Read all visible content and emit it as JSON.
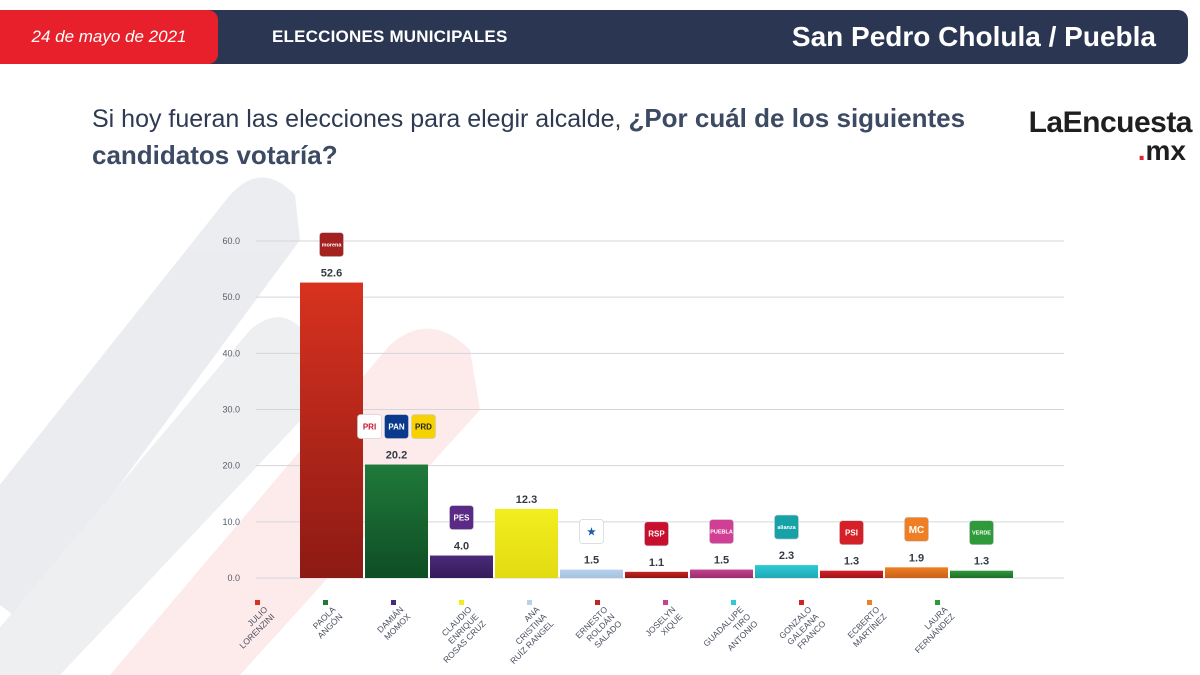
{
  "header": {
    "date": "24 de mayo de 2021",
    "section": "ELECCIONES MUNICIPALES",
    "place": "San Pedro Cholula / Puebla"
  },
  "question": {
    "part1": "Si hoy fueran las elecciones para elegir alcalde, ",
    "part2": "¿Por cuál de los siguientes candidatos votaría?"
  },
  "brand": {
    "name": "LaEncuesta",
    "dot": ".",
    "tld": "mx"
  },
  "colors": {
    "accent_red": "#e8202b",
    "navy": "#2b3752"
  },
  "chart_data": {
    "type": "bar",
    "ylim": [
      0,
      60
    ],
    "yticks": [
      0,
      10,
      20,
      30,
      40,
      50,
      60
    ],
    "ytick_labels": [
      "0.0",
      "10.0",
      "20.0",
      "30.0",
      "40.0",
      "50.0",
      "60.0"
    ],
    "grid": true,
    "categories": [
      "JULIO LORENZINI",
      "PAOLA ANGÓN",
      "DAMIÁN MOMOX",
      "CLAUDIO ENRIQUE ROSAS CRUZ",
      "ANA CRISTINA RUÍZ RANGEL",
      "ERNESTO ROLDÁN SALADO",
      "JOSELYN XIQUE",
      "GUADALUPE TIRO ANTONIO",
      "GONZALO GALEANA FRANCO",
      "ECBERTO MARTÍNEZ",
      "LAURA FERNÁNDEZ"
    ],
    "category_lines": [
      [
        "JULIO",
        "LORENZINI"
      ],
      [
        "PAOLA",
        "ANGÓN"
      ],
      [
        "DAMIÁN",
        "MOMOX"
      ],
      [
        "CLAUDIO",
        "ENRIQUE",
        "ROSAS CRUZ"
      ],
      [
        "ANA",
        "CRISTINA",
        "RUÍZ RANGEL"
      ],
      [
        "ERNESTO",
        "ROLDÁN",
        "SALADO"
      ],
      [
        "JOSELYN",
        "XIQUE"
      ],
      [
        "GUADALUPE",
        "TIRO",
        "ANTONIO"
      ],
      [
        "GONZALO",
        "GALEANA",
        "FRANCO"
      ],
      [
        "ECBERTO",
        "MARTÍNEZ"
      ],
      [
        "LAURA",
        "FERNÁNDEZ"
      ]
    ],
    "values": [
      52.6,
      20.2,
      4.0,
      12.3,
      1.5,
      1.1,
      1.5,
      2.3,
      1.3,
      1.9,
      1.3
    ],
    "value_labels": [
      "52.6",
      "20.2",
      "4.0",
      "12.3",
      "1.5",
      "1.1",
      "1.5",
      "2.3",
      "1.3",
      "1.9",
      "1.3"
    ],
    "bar_colors": [
      "#d8321f",
      "#1f7a3a",
      "#4a2a7a",
      "#f2ee1e",
      "#b8d2ec",
      "#c8231f",
      "#c4428e",
      "#2ec9d6",
      "#d62027",
      "#ef7f22",
      "#2f9a3a"
    ],
    "bar_colors_dark": [
      "#8c1a14",
      "#0f4d24",
      "#351b5c",
      "#e3db12",
      "#a4c2e0",
      "#8e1714",
      "#9b2d6d",
      "#1eaab6",
      "#9e1418",
      "#c8621a",
      "#1d6e27"
    ],
    "party_badges": [
      [
        {
          "name": "morena-logo",
          "text": "morena",
          "bg": "#a3211f",
          "fg": "#ffffff"
        }
      ],
      [
        {
          "name": "pri-logo",
          "text": "PRI",
          "bg": "#ffffff",
          "fg": "#c8102e"
        },
        {
          "name": "pan-logo",
          "text": "PAN",
          "bg": "#0a3a8c",
          "fg": "#ffffff"
        },
        {
          "name": "prd-logo",
          "text": "PRD",
          "bg": "#f5d200",
          "fg": "#222222"
        }
      ],
      [
        {
          "name": "pes-logo",
          "text": "PES",
          "bg": "#5b2a86",
          "fg": "#ffffff"
        }
      ],
      [],
      [
        {
          "name": "compromiso-puebla-logo",
          "text": "★",
          "bg": "#ffffff",
          "fg": "#1a5aa6"
        }
      ],
      [
        {
          "name": "rsp-logo",
          "text": "RSP",
          "bg": "#c8102e",
          "fg": "#ffffff"
        }
      ],
      [
        {
          "name": "puebla-mexico-logo",
          "text": "PUEBLA",
          "bg": "#d13f95",
          "fg": "#ffffff"
        }
      ],
      [
        {
          "name": "nueva-alianza-logo",
          "text": "alianza",
          "bg": "#17a2a8",
          "fg": "#ffffff"
        }
      ],
      [
        {
          "name": "psi-logo",
          "text": "PSI",
          "bg": "#d62027",
          "fg": "#ffffff"
        }
      ],
      [
        {
          "name": "movimiento-ciudadano-logo",
          "text": "MC",
          "bg": "#ef7f22",
          "fg": "#ffffff"
        }
      ],
      [
        {
          "name": "verde-logo",
          "text": "VERDE",
          "bg": "#2f9a3a",
          "fg": "#ffffff"
        }
      ]
    ]
  }
}
